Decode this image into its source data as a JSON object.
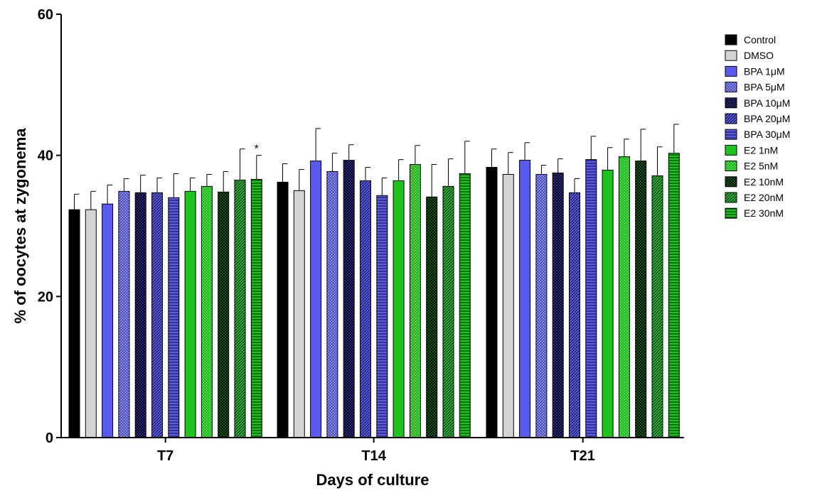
{
  "chart_data": {
    "type": "bar",
    "title": "",
    "xlabel": "Days of culture",
    "ylabel": "% of oocytes at zygonema",
    "categories": [
      "T7",
      "T14",
      "T21"
    ],
    "ylim": [
      0,
      60
    ],
    "yticks": [
      "0",
      "20",
      "40",
      "60"
    ],
    "grid": false,
    "legend_position": "right",
    "series": [
      {
        "name": "Control",
        "values": [
          32.3,
          36.2,
          38.3
        ],
        "errors": [
          2.2,
          2.6,
          2.6
        ],
        "color": "#000000",
        "pattern": "solid"
      },
      {
        "name": "DMSO",
        "values": [
          32.3,
          35.0,
          37.3
        ],
        "errors": [
          2.6,
          3.0,
          3.1
        ],
        "color": "#d3d3d3",
        "pattern": "solid"
      },
      {
        "name": "BPA 1μM",
        "values": [
          33.1,
          39.2,
          39.3
        ],
        "errors": [
          2.7,
          4.6,
          2.5
        ],
        "color": "#5a5aee",
        "pattern": "solid"
      },
      {
        "name": "BPA 5μM",
        "values": [
          34.9,
          37.7,
          37.3
        ],
        "errors": [
          1.8,
          2.6,
          1.3
        ],
        "color": "#5a5aee",
        "pattern": "dots"
      },
      {
        "name": "BPA 10μM",
        "values": [
          34.7,
          39.3,
          37.5
        ],
        "errors": [
          2.5,
          2.2,
          2.0
        ],
        "color": "#2a2a8a",
        "pattern": "check"
      },
      {
        "name": "BPA 20μM",
        "values": [
          34.7,
          36.4,
          34.7
        ],
        "errors": [
          2.1,
          1.9,
          2.0
        ],
        "color": "#5a5aee",
        "pattern": "diag"
      },
      {
        "name": "BPA 30μM",
        "values": [
          34.0,
          34.3,
          39.4
        ],
        "errors": [
          3.4,
          2.5,
          3.3
        ],
        "color": "#5a5aee",
        "pattern": "hlines"
      },
      {
        "name": "E2 1nM",
        "values": [
          34.9,
          36.4,
          37.9
        ],
        "errors": [
          1.9,
          3.0,
          3.2
        ],
        "color": "#1dc41d",
        "pattern": "solid"
      },
      {
        "name": "E2 5nM",
        "values": [
          35.6,
          38.7,
          39.8
        ],
        "errors": [
          1.7,
          2.7,
          2.5
        ],
        "color": "#1dc41d",
        "pattern": "dots"
      },
      {
        "name": "E2 10nM",
        "values": [
          34.8,
          34.1,
          39.2
        ],
        "errors": [
          2.9,
          4.6,
          4.5
        ],
        "color": "#0f5f0f",
        "pattern": "check"
      },
      {
        "name": "E2 20nM",
        "values": [
          36.5,
          35.6,
          37.1
        ],
        "errors": [
          4.4,
          3.9,
          4.1
        ],
        "color": "#1dc41d",
        "pattern": "diag"
      },
      {
        "name": "E2 30nM",
        "values": [
          36.6,
          37.4,
          40.3
        ],
        "errors": [
          3.4,
          4.6,
          4.1
        ],
        "color": "#1dc41d",
        "pattern": "hlines"
      }
    ],
    "annotations": [
      {
        "text": "*",
        "category": "T7",
        "series": "E2 30nM"
      }
    ]
  }
}
